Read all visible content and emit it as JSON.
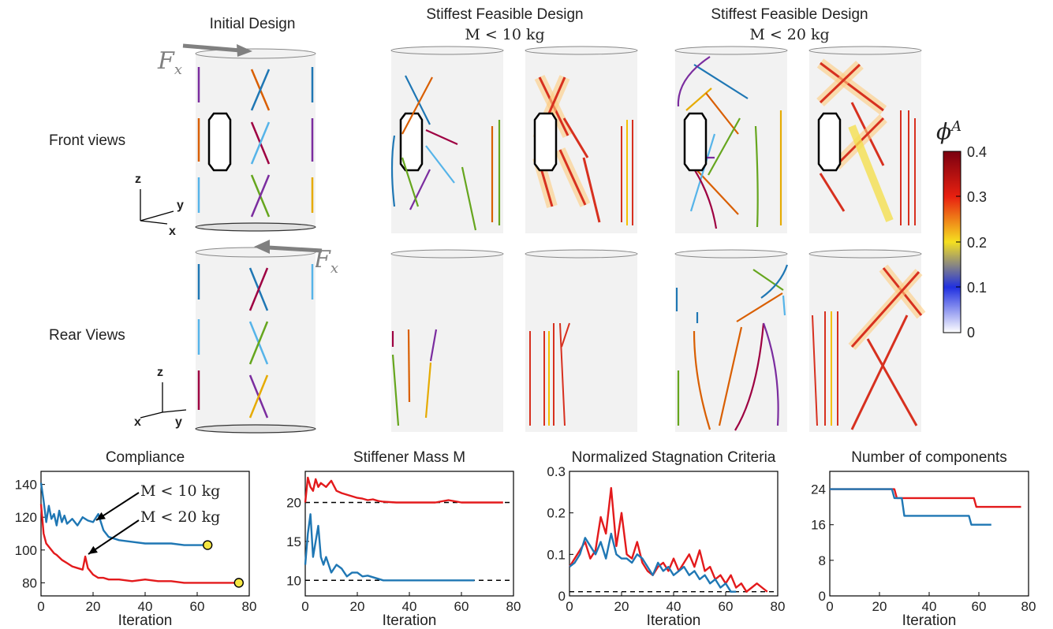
{
  "figure": {
    "col_titles": {
      "initial": "Initial Design",
      "stiffest_10": "Stiffest Feasible Design",
      "stiffest_10_sub": "M < 10 kg",
      "stiffest_20": "Stiffest Feasible Design",
      "stiffest_20_sub": "M < 20 kg"
    },
    "row_labels": {
      "front": "Front views",
      "rear": "Rear Views"
    },
    "force_label": "F",
    "force_sub": "x",
    "axes_front": {
      "z": "z",
      "y": "y",
      "x": "x"
    },
    "axes_rear": {
      "z": "z",
      "x": "x",
      "y": "y"
    },
    "colorbar": {
      "label": "ϕ",
      "label_sup": "A",
      "ticks": [
        "0.4",
        "0.3",
        "0.2",
        "0.1",
        "0"
      ],
      "min": 0,
      "max": 0.4
    }
  },
  "chart_data": [
    {
      "type": "line",
      "title": "Compliance",
      "xlabel": "Iteration",
      "ylabel": "",
      "xlim": [
        0,
        80
      ],
      "ylim": [
        72,
        148
      ],
      "xticks": [
        0,
        20,
        40,
        60,
        80
      ],
      "yticks": [
        80,
        100,
        120,
        140
      ],
      "annotations": [
        "M < 10 kg",
        "M < 20 kg"
      ],
      "series": [
        {
          "name": "M < 10 kg",
          "color": "#1f77b4",
          "x": [
            0,
            1,
            2,
            3,
            4,
            5,
            6,
            7,
            8,
            9,
            10,
            12,
            14,
            16,
            18,
            20,
            22,
            24,
            26,
            28,
            30,
            35,
            40,
            45,
            50,
            55,
            60,
            64
          ],
          "y": [
            141,
            130,
            117,
            127,
            119,
            122,
            115,
            124,
            117,
            121,
            116,
            119,
            115,
            120,
            118,
            117,
            122,
            112,
            108,
            107,
            106,
            105,
            104,
            104,
            104,
            103,
            103,
            103
          ]
        },
        {
          "name": "M < 20 kg",
          "color": "#e31a1c",
          "x": [
            0,
            1,
            2,
            3,
            4,
            5,
            6,
            8,
            10,
            12,
            14,
            16,
            17,
            18,
            20,
            22,
            24,
            26,
            28,
            30,
            35,
            40,
            45,
            50,
            55,
            60,
            65,
            70,
            76
          ],
          "y": [
            128,
            110,
            104,
            102,
            100,
            98,
            97,
            94,
            92,
            90,
            89,
            88,
            96,
            89,
            85,
            83,
            83,
            82,
            82,
            82,
            81,
            82,
            81,
            81,
            80,
            80,
            80,
            80,
            80
          ]
        }
      ],
      "endpoints": [
        {
          "x": 64,
          "y": 103
        },
        {
          "x": 76,
          "y": 80
        }
      ]
    },
    {
      "type": "line",
      "title": "Stiffener Mass M",
      "xlabel": "Iteration",
      "ylabel": "",
      "xlim": [
        0,
        80
      ],
      "ylim": [
        8,
        24
      ],
      "xticks": [
        0,
        20,
        40,
        60,
        80
      ],
      "yticks": [
        10,
        15,
        20
      ],
      "reference_lines": [
        10,
        20
      ],
      "series": [
        {
          "name": "M < 10 kg",
          "color": "#1f77b4",
          "x": [
            0,
            1,
            2,
            3,
            4,
            5,
            6,
            7,
            8,
            10,
            12,
            14,
            16,
            18,
            20,
            22,
            24,
            26,
            28,
            30,
            35,
            40,
            50,
            60,
            65
          ],
          "y": [
            12,
            16,
            18.5,
            13,
            15,
            17,
            13,
            12,
            13,
            11,
            12,
            11.5,
            10.5,
            11,
            11,
            10.5,
            10.6,
            10.4,
            10.2,
            10,
            10,
            10,
            10,
            10,
            10
          ]
        },
        {
          "name": "M < 20 kg",
          "color": "#e31a1c",
          "x": [
            0,
            1,
            2,
            3,
            4,
            5,
            6,
            8,
            10,
            12,
            14,
            16,
            18,
            20,
            22,
            24,
            26,
            28,
            30,
            35,
            40,
            50,
            55,
            60,
            70,
            76
          ],
          "y": [
            20,
            23.2,
            22,
            21.5,
            23,
            22,
            22.5,
            22,
            22.8,
            21.5,
            21.2,
            21,
            20.8,
            20.6,
            20.5,
            20.3,
            20.4,
            20.2,
            20.1,
            20,
            20,
            20,
            20.3,
            20,
            20,
            20
          ]
        }
      ]
    },
    {
      "type": "line",
      "title": "Normalized Stagnation Criteria",
      "xlabel": "Iteration",
      "ylabel": "",
      "xlim": [
        0,
        80
      ],
      "ylim": [
        0,
        0.3
      ],
      "xticks": [
        0,
        20,
        40,
        60,
        80
      ],
      "yticks": [
        0,
        0.1,
        0.2,
        0.3
      ],
      "reference_lines": [
        0.01
      ],
      "series": [
        {
          "name": "M < 10 kg",
          "color": "#1f77b4",
          "x": [
            0,
            2,
            4,
            6,
            8,
            10,
            12,
            14,
            16,
            18,
            20,
            22,
            24,
            26,
            28,
            30,
            32,
            34,
            36,
            38,
            40,
            42,
            44,
            46,
            48,
            50,
            52,
            54,
            56,
            58,
            60,
            62,
            64
          ],
          "y": [
            0.07,
            0.08,
            0.1,
            0.14,
            0.12,
            0.1,
            0.13,
            0.09,
            0.15,
            0.1,
            0.09,
            0.09,
            0.08,
            0.1,
            0.09,
            0.07,
            0.05,
            0.08,
            0.06,
            0.07,
            0.05,
            0.06,
            0.07,
            0.05,
            0.06,
            0.04,
            0.05,
            0.03,
            0.04,
            0.02,
            0.03,
            0.01,
            0.01
          ]
        },
        {
          "name": "M < 20 kg",
          "color": "#e31a1c",
          "x": [
            0,
            2,
            4,
            6,
            8,
            10,
            12,
            14,
            16,
            18,
            20,
            22,
            24,
            26,
            28,
            30,
            32,
            34,
            36,
            38,
            40,
            42,
            44,
            46,
            48,
            50,
            52,
            54,
            56,
            58,
            60,
            62,
            64,
            66,
            68,
            70,
            72,
            74,
            76
          ],
          "y": [
            0.07,
            0.09,
            0.11,
            0.13,
            0.09,
            0.11,
            0.19,
            0.15,
            0.26,
            0.12,
            0.2,
            0.1,
            0.09,
            0.13,
            0.08,
            0.06,
            0.05,
            0.07,
            0.08,
            0.06,
            0.09,
            0.06,
            0.08,
            0.1,
            0.07,
            0.11,
            0.06,
            0.07,
            0.04,
            0.05,
            0.03,
            0.05,
            0.02,
            0.03,
            0.01,
            0.02,
            0.03,
            0.02,
            0.01
          ]
        }
      ]
    },
    {
      "type": "line",
      "title": "Number of components",
      "xlabel": "Iteration",
      "ylabel": "",
      "xlim": [
        0,
        80
      ],
      "ylim": [
        0,
        28
      ],
      "xticks": [
        0,
        20,
        40,
        60,
        80
      ],
      "yticks": [
        0,
        8,
        16,
        24
      ],
      "series": [
        {
          "name": "M < 10 kg",
          "color": "#1f77b4",
          "x": [
            0,
            25,
            26,
            29,
            30,
            56,
            57,
            65
          ],
          "y": [
            24,
            24,
            22,
            22,
            18,
            18,
            16,
            16
          ]
        },
        {
          "name": "M < 20 kg",
          "color": "#e31a1c",
          "x": [
            0,
            26,
            27,
            58,
            59,
            77
          ],
          "y": [
            24,
            24,
            22,
            22,
            20,
            20
          ]
        }
      ]
    }
  ]
}
